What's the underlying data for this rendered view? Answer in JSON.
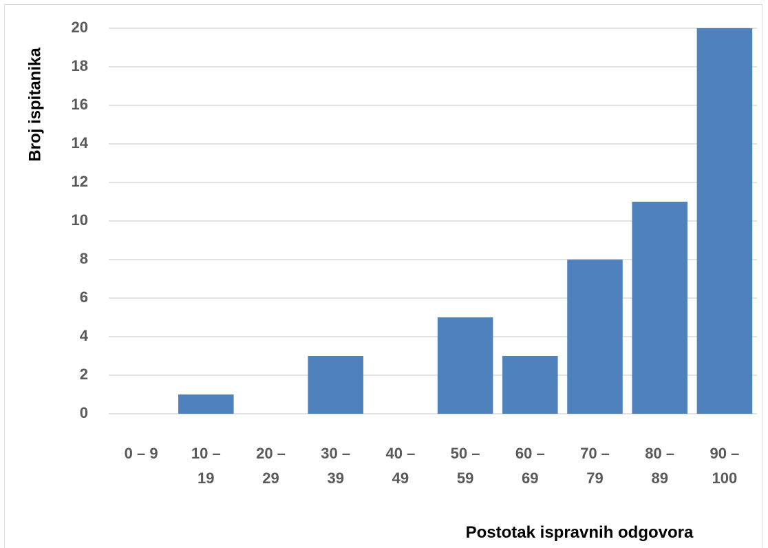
{
  "chart_data": {
    "type": "bar",
    "categories": [
      [
        "0 – 9"
      ],
      [
        "10 –",
        "19"
      ],
      [
        "20 –",
        "29"
      ],
      [
        "30 –",
        "39"
      ],
      [
        "40 –",
        "49"
      ],
      [
        "50 –",
        "59"
      ],
      [
        "60 –",
        "69"
      ],
      [
        "70 –",
        "79"
      ],
      [
        "80 –",
        "89"
      ],
      [
        "90 –",
        "100"
      ]
    ],
    "values": [
      0,
      1,
      0,
      3,
      0,
      5,
      3,
      8,
      11,
      20
    ],
    "xlabel": "Postotak ispravnih odgovora",
    "ylabel": "Broj ispitanika",
    "ylim": [
      0,
      20
    ],
    "yticks": [
      0,
      2,
      4,
      6,
      8,
      10,
      12,
      14,
      16,
      18,
      20
    ],
    "grid": true,
    "legend": "none",
    "colors": {
      "bar": "#4f81bd",
      "grid": "#d9d9d9",
      "tick_text": "#595959"
    }
  }
}
